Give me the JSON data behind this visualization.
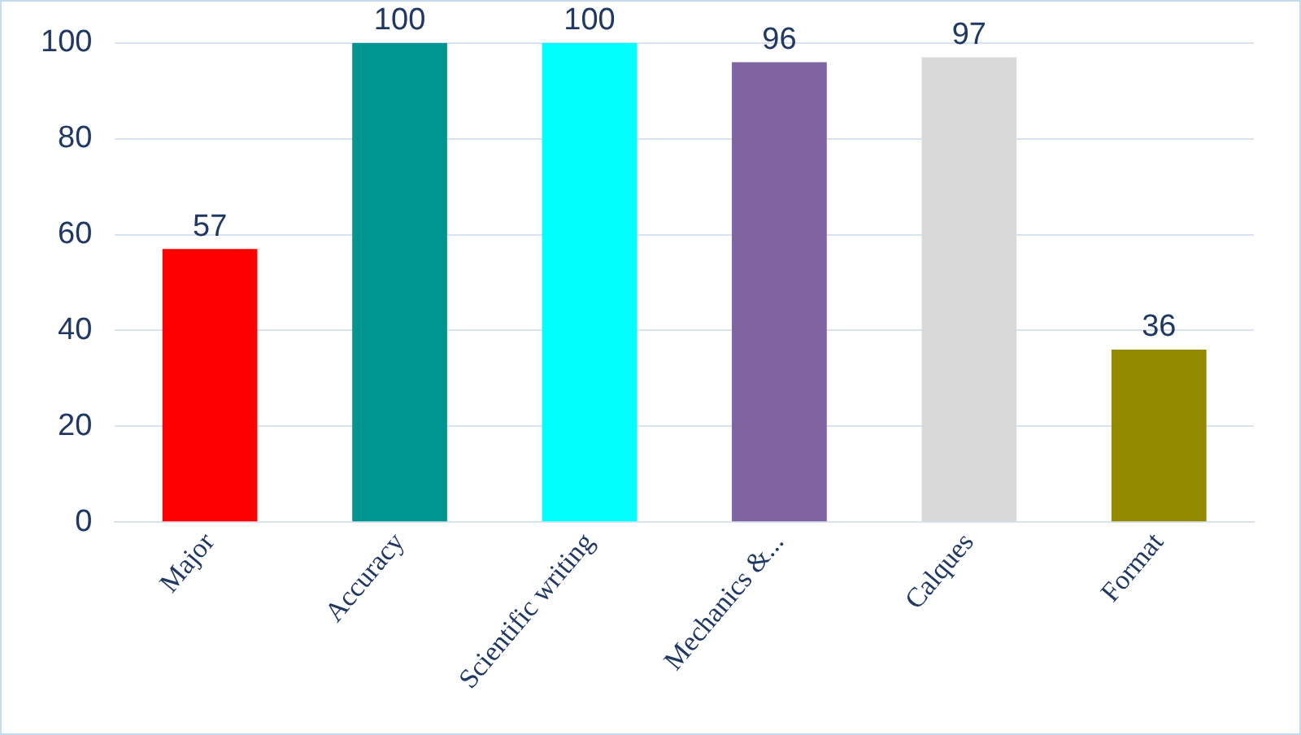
{
  "chart_data": {
    "type": "bar",
    "categories": [
      "Major",
      "Accuracy",
      "Scientific writing",
      "Mechanics &...",
      "Calques",
      "Format"
    ],
    "values": [
      57,
      100,
      100,
      96,
      97,
      36
    ],
    "colors": [
      "#ff0000",
      "#009590",
      "#00ffff",
      "#8064a2",
      "#d9d9d9",
      "#948a00"
    ],
    "ylim": [
      0,
      100
    ],
    "yticks": [
      0,
      20,
      40,
      60,
      80,
      100
    ],
    "grid": "y",
    "data_labels": true,
    "legend": false
  }
}
